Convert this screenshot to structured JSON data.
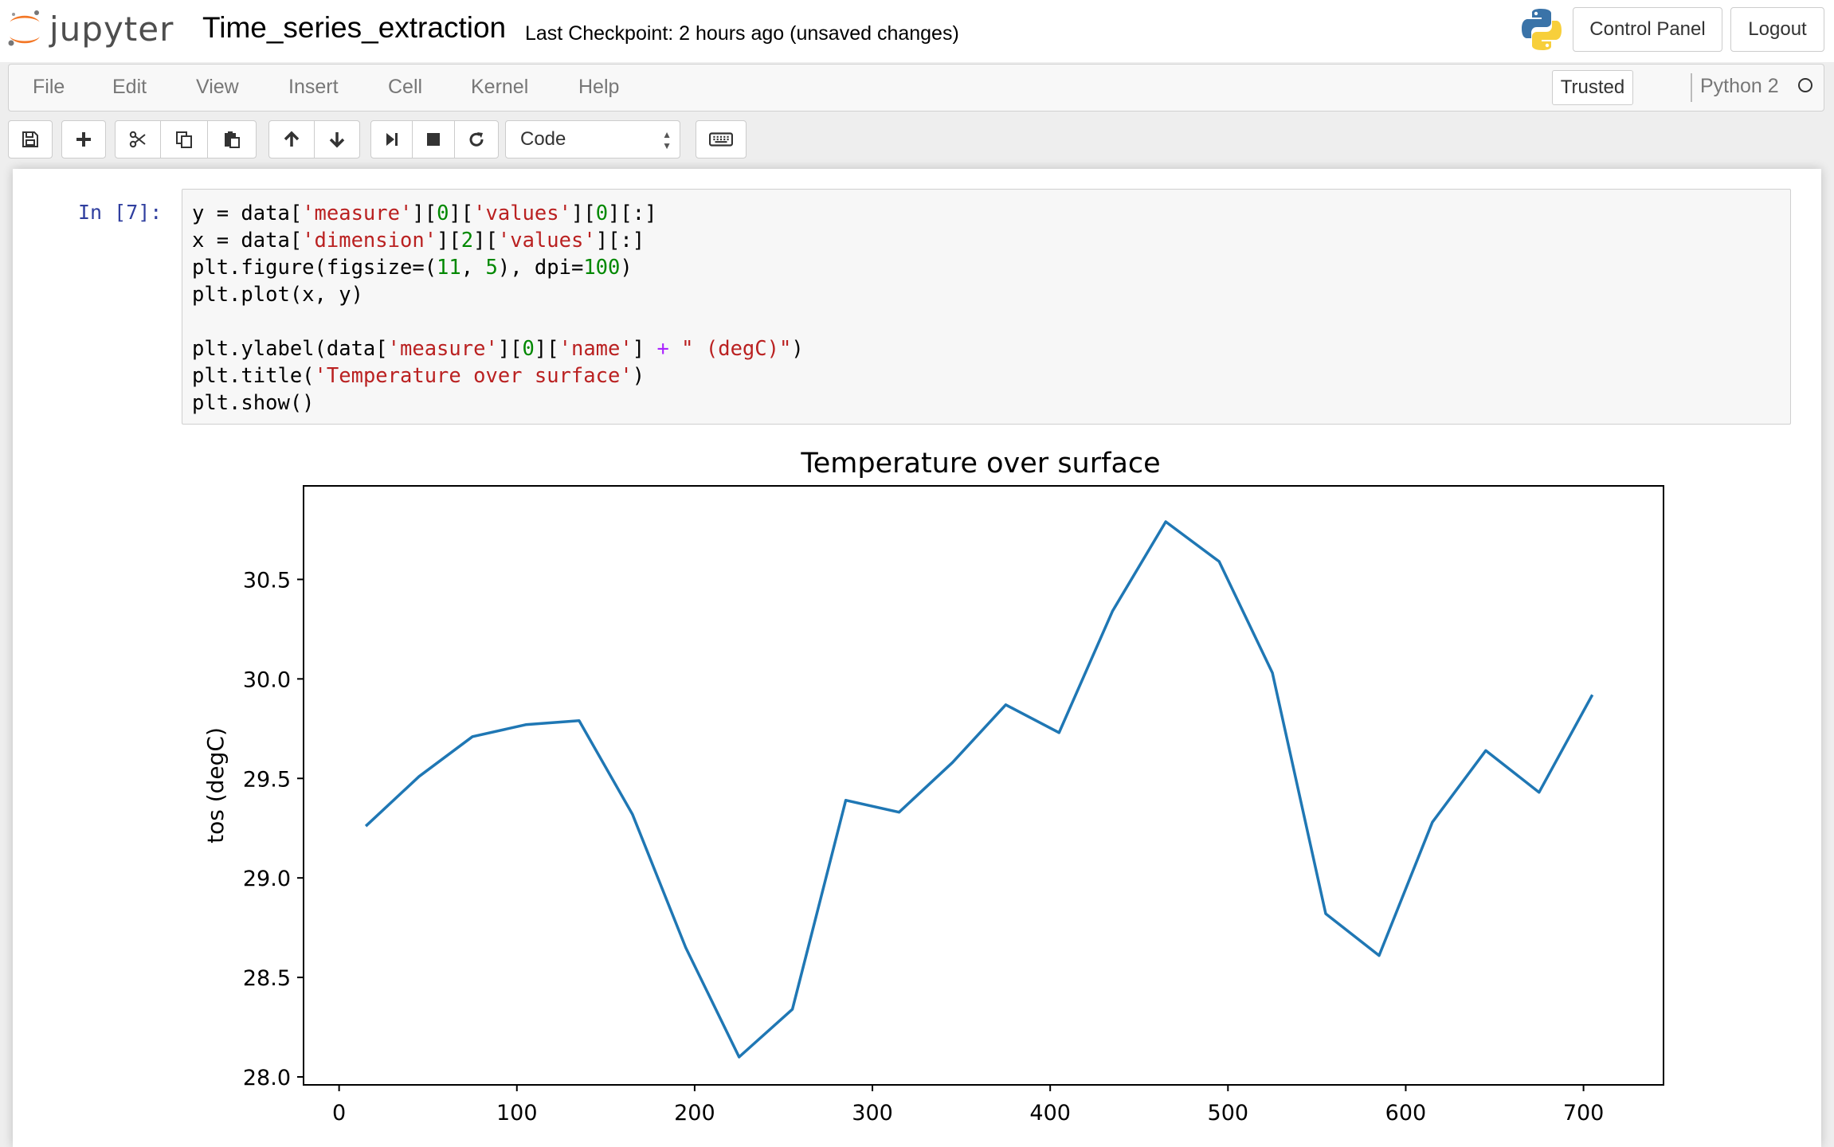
{
  "header": {
    "logo_text": "jupyter",
    "notebook_name": "Time_series_extraction",
    "checkpoint": "Last Checkpoint: 2 hours ago (unsaved changes)",
    "control_panel_label": "Control Panel",
    "logout_label": "Logout"
  },
  "menubar": {
    "items": [
      "File",
      "Edit",
      "View",
      "Insert",
      "Cell",
      "Kernel",
      "Help"
    ],
    "trusted_label": "Trusted",
    "kernel_name": "Python 2"
  },
  "toolbar": {
    "cell_type": "Code",
    "buttons": [
      "save-icon",
      "plus-icon",
      "scissors-icon",
      "copy-icon",
      "paste-icon",
      "arrow-up-icon",
      "arrow-down-icon",
      "run-step-icon",
      "stop-icon",
      "restart-icon",
      "keyboard-icon"
    ]
  },
  "cell": {
    "prompt": "In [7]:",
    "code_lines": [
      "y = data['measure'][0]['values'][0][:]",
      "x = data['dimension'][2]['values'][:]",
      "plt.figure(figsize=(11, 5), dpi=100)",
      "plt.plot(x, y)",
      "",
      "plt.ylabel(data['measure'][0]['name'] + \" (degC)\")",
      "plt.title('Temperature over surface')",
      "plt.show()"
    ]
  },
  "chart_data": {
    "type": "line",
    "title": "Temperature over surface",
    "xlabel": "",
    "ylabel": "tos (degC)",
    "xlim": [
      -20,
      745
    ],
    "ylim": [
      27.96,
      30.97
    ],
    "xticks": [
      0,
      100,
      200,
      300,
      400,
      500,
      600,
      700
    ],
    "yticks": [
      28.0,
      28.5,
      29.0,
      29.5,
      30.0,
      30.5
    ],
    "ytick_labels": [
      "28.0",
      "28.5",
      "29.0",
      "29.5",
      "30.0",
      "30.5"
    ],
    "grid": false,
    "color": "#1f77b4",
    "x": [
      15,
      45,
      75,
      105,
      135,
      165,
      195,
      225,
      255,
      285,
      315,
      345,
      375,
      405,
      435,
      465,
      495,
      525,
      555,
      585,
      615,
      645,
      675,
      705
    ],
    "y": [
      29.26,
      29.51,
      29.71,
      29.77,
      29.79,
      29.32,
      28.65,
      28.1,
      28.34,
      29.39,
      29.33,
      29.58,
      29.87,
      29.73,
      30.34,
      30.79,
      30.59,
      30.03,
      28.82,
      28.61,
      29.28,
      29.64,
      29.43,
      29.92
    ]
  },
  "colors": {
    "prompt": "#303F9F",
    "string": "#ba2121",
    "number": "#008800",
    "operator": "#aa22ff",
    "line": "#1f77b4"
  }
}
